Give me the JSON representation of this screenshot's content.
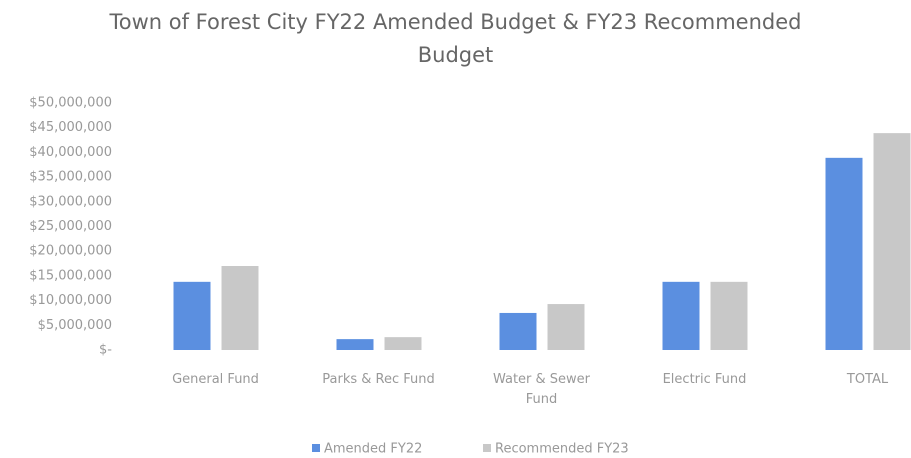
{
  "chart_data": {
    "type": "bar",
    "title": "Town of Forest City FY22 Amended Budget & FY23 Recommended Budget",
    "categories": [
      "General Fund",
      "Parks & Rec Fund",
      "Water & Sewer Fund",
      "Electric Fund",
      "TOTAL"
    ],
    "series": [
      {
        "name": "Amended FY22",
        "color": "#5b8fe0",
        "values": [
          13800000,
          2200000,
          7500000,
          13800000,
          38900000
        ]
      },
      {
        "name": "Recommended FY23",
        "color": "#c8c8c8",
        "values": [
          17000000,
          2600000,
          9300000,
          13800000,
          43900000
        ]
      }
    ],
    "ylim": [
      0,
      50000000
    ],
    "yticks": [
      {
        "value": 0,
        "label": "$-"
      },
      {
        "value": 5000000,
        "label": "$5,000,000"
      },
      {
        "value": 10000000,
        "label": "$10,000,000"
      },
      {
        "value": 15000000,
        "label": "$15,000,000"
      },
      {
        "value": 20000000,
        "label": "$20,000,000"
      },
      {
        "value": 25000000,
        "label": "$25,000,000"
      },
      {
        "value": 30000000,
        "label": "$30,000,000"
      },
      {
        "value": 35000000,
        "label": "$35,000,000"
      },
      {
        "value": 40000000,
        "label": "$40,000,000"
      },
      {
        "value": 45000000,
        "label": "$45,000,000"
      },
      {
        "value": 50000000,
        "label": "$50,000,000"
      }
    ],
    "grid": false,
    "legend": "bottom"
  }
}
